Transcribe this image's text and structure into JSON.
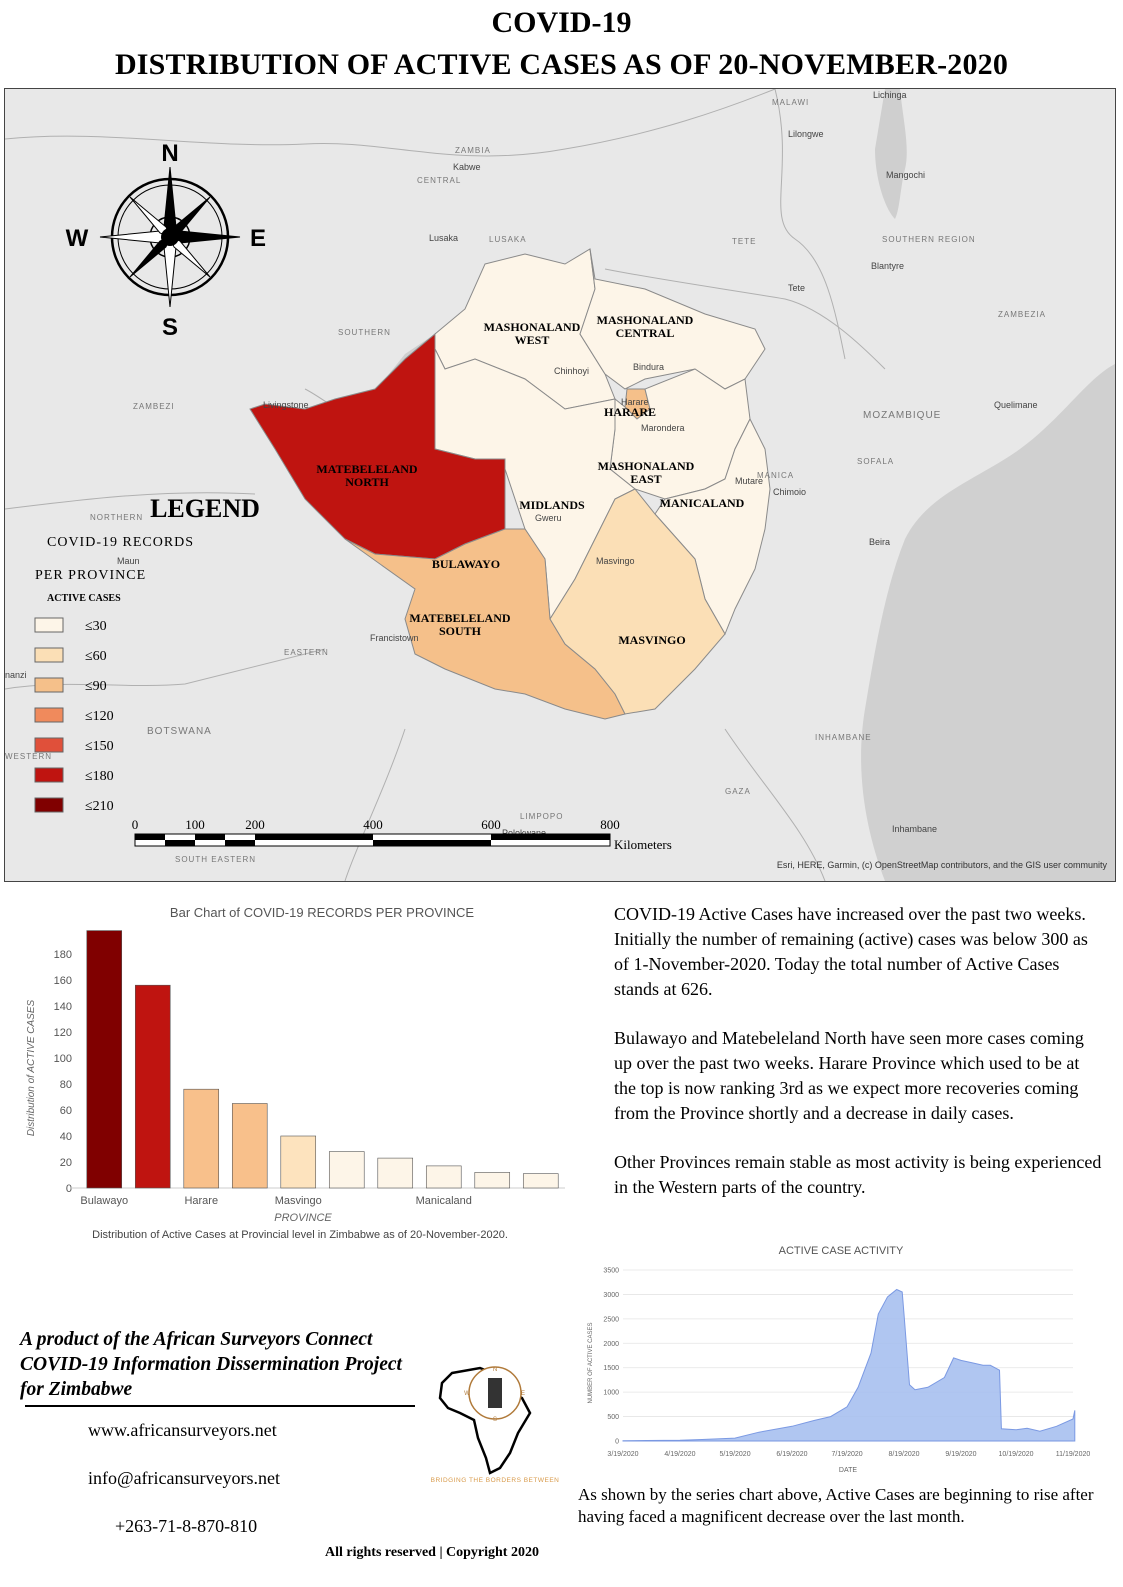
{
  "title": {
    "line1": "COVID-19",
    "line2": "DISTRIBUTION OF ACTIVE CASES AS OF 20-NOVEMBER-2020"
  },
  "compass": {
    "n": "N",
    "s": "S",
    "e": "E",
    "w": "W"
  },
  "map": {
    "provinces": [
      {
        "name": "MASHONALAND\nWEST",
        "fill": "#fdf5e8"
      },
      {
        "name": "MASHONALAND\nCENTRAL",
        "fill": "#fdf5e8"
      },
      {
        "name": "HARARE",
        "fill": "#f5c08a"
      },
      {
        "name": "MASHONALAND\nEAST",
        "fill": "#fdf5e8"
      },
      {
        "name": "MANICALAND",
        "fill": "#fdf5e8"
      },
      {
        "name": "MIDLANDS",
        "fill": "#fdf5e8"
      },
      {
        "name": "MATEBELELAND\nNORTH",
        "fill": "#bf1410"
      },
      {
        "name": "BULAWAYO",
        "fill": "#800000"
      },
      {
        "name": "MATEBELELAND\nSOUTH",
        "fill": "#f5c08a"
      },
      {
        "name": "MASVINGO",
        "fill": "#fbdfb6"
      }
    ],
    "countries": [
      "ZAMBIA",
      "MALAWI",
      "MOZAMBIQUE",
      "BOTSWANA"
    ],
    "regions": [
      "CENTRAL",
      "LUSAKA",
      "SOUTHERN",
      "ZAMBEZI",
      "NORTHERN",
      "EASTERN",
      "TETE",
      "SOUTHERN\nREGION",
      "ZAMBEZIA",
      "MANICA",
      "SOFALA",
      "INHAMBANE",
      "GAZA",
      "LIMPOPO",
      "SOUTH EASTERN",
      "WESTERN"
    ],
    "cities": [
      "Lichinga",
      "Lilongwe",
      "Mangochi",
      "Kabwe",
      "Lusaka",
      "Blantyre",
      "Tete",
      "Chinhoyi",
      "Bindura",
      "Harare",
      "Marondera",
      "Quelimane",
      "Livingstone",
      "Mutare",
      "Chimoio",
      "Gweru",
      "Beira",
      "Maun",
      "Masvingo",
      "Francistown",
      "Polokwane",
      "Inhambane",
      "nanzi"
    ],
    "attribution": "Esri, HERE, Garmin, (c) OpenStreetMap contributors, and the GIS user community",
    "scale": {
      "ticks": [
        "0",
        "100",
        "200",
        "400",
        "600",
        "800"
      ],
      "unit": "Kilometers"
    }
  },
  "legend": {
    "title": "LEGEND",
    "subtitle1": "COVID-19 RECORDS",
    "subtitle2": "PER PROVINCE",
    "field": "ACTIVE CASES",
    "classes": [
      {
        "label": "≤30",
        "color": "#fdf5e8"
      },
      {
        "label": "≤60",
        "color": "#fbdfb6"
      },
      {
        "label": "≤90",
        "color": "#f5c08a"
      },
      {
        "label": "≤120",
        "color": "#f08a5c"
      },
      {
        "label": "≤150",
        "color": "#e0503a"
      },
      {
        "label": "≤180",
        "color": "#bf1410"
      },
      {
        "label": "≤210",
        "color": "#800000"
      }
    ]
  },
  "chart_data": [
    {
      "type": "bar",
      "title": "Bar Chart of COVID-19 RECORDS PER PROVINCE",
      "xlabel": "PROVINCE",
      "ylabel": "Distribution of ACTIVE CASES",
      "caption": "Distribution of Active Cases at Provincial level in Zimbabwe as of 20-November-2020.",
      "ylim": [
        0,
        200
      ],
      "yticks": [
        0,
        20,
        40,
        60,
        80,
        100,
        120,
        140,
        160,
        180
      ],
      "xtick_labels": [
        "Bulawayo",
        "",
        "Harare",
        "",
        "Masvingo",
        "",
        "",
        "Manicaland",
        "",
        ""
      ],
      "values": [
        198,
        156,
        76,
        65,
        40,
        28,
        23,
        17,
        12,
        11
      ],
      "colors": [
        "#800000",
        "#bf1410",
        "#f8c08b",
        "#f8c08b",
        "#fde3be",
        "#fdf5e8",
        "#fdf5e8",
        "#fdf5e8",
        "#fdf5e8",
        "#fdf5e8"
      ]
    },
    {
      "type": "area",
      "title": "ACTIVE CASE ACTIVITY",
      "xlabel": "DATE",
      "ylabel": "NUMBER OF ACTIVE CASES",
      "ylim": [
        0,
        3500
      ],
      "yticks": [
        0,
        500,
        1000,
        1500,
        2000,
        2500,
        3000,
        3500
      ],
      "xticks": [
        "3/19/2020",
        "4/19/2020",
        "5/19/2020",
        "6/19/2020",
        "7/19/2020",
        "8/19/2020",
        "9/19/2020",
        "10/19/2020",
        "11/19/2020"
      ],
      "x": [
        "3/19/2020",
        "4/1/2020",
        "4/19/2020",
        "5/1/2020",
        "5/19/2020",
        "6/1/2020",
        "6/19/2020",
        "7/1/2020",
        "7/10/2020",
        "7/19/2020",
        "7/25/2020",
        "8/1/2020",
        "8/5/2020",
        "8/10/2020",
        "8/15/2020",
        "8/18/2020",
        "8/19/2020",
        "8/22/2020",
        "8/25/2020",
        "9/1/2020",
        "9/10/2020",
        "9/15/2020",
        "9/19/2020",
        "9/25/2020",
        "10/1/2020",
        "10/5/2020",
        "10/10/2020",
        "10/11/2020",
        "10/19/2020",
        "10/25/2020",
        "11/1/2020",
        "11/10/2020",
        "11/19/2020",
        "11/20/2020"
      ],
      "y": [
        5,
        10,
        15,
        30,
        60,
        180,
        300,
        420,
        500,
        700,
        1100,
        1800,
        2600,
        2950,
        3100,
        3050,
        2600,
        1150,
        1050,
        1100,
        1300,
        1700,
        1650,
        1600,
        1550,
        1550,
        1450,
        250,
        230,
        260,
        200,
        300,
        450,
        626
      ],
      "color": "#9fb8ee"
    }
  ],
  "text": {
    "p1": "COVID-19 Active Cases have increased over the past two weeks. Initially the number of remaining (active) cases was below 300 as of 1-November-2020. Today the total number of Active Cases stands at 626.",
    "p2": "Bulawayo and  Matebeleland North have seen more cases coming up over the past two weeks. Harare Province which used to be at the top is now ranking 3rd as we expect more recoveries coming from the Province shortly and a decrease in daily cases.",
    "p3": "Other Provinces remain stable as most activity is being experienced in the Western parts of the country.",
    "caption2": "As shown by the series chart above, Active Cases are beginning to rise after having faced a magnificent decrease over the last month."
  },
  "footer": {
    "credit_line1": "A product of the African Surveyors Connect",
    "credit_line2": "COVID-19 Information Dissermination Project",
    "credit_line3": "for Zimbabwe",
    "website": "www.africansurveyors.net",
    "email": "info@africansurveyors.net",
    "phone": "+263-71-8-870-810",
    "logo_tagline": "BRIDGING THE BORDERS BETWEEN",
    "logo_compass": {
      "n": "N",
      "s": "S",
      "e": "E",
      "w": "W"
    },
    "copyright": "All rights reserved | Copyright 2020"
  }
}
